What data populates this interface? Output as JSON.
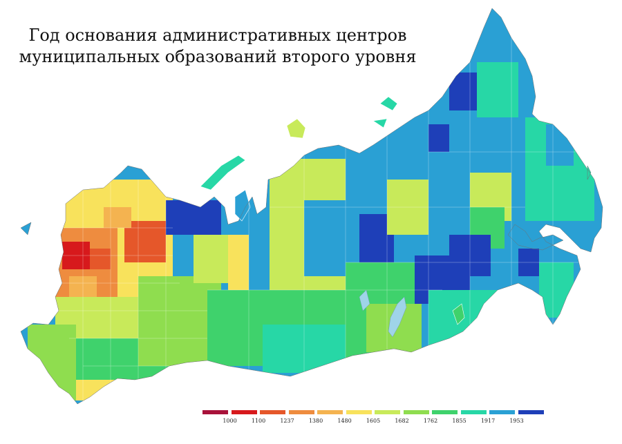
{
  "title": {
    "line1": "Год основания административных центров",
    "line2": "муниципальных образований второго уровня"
  },
  "legend": {
    "colors": [
      "#a8123a",
      "#d7191c",
      "#e5572a",
      "#ee8c3f",
      "#f4b350",
      "#f8e25c",
      "#c8ea5a",
      "#8fdd4f",
      "#3fd26c",
      "#27d7a6",
      "#2aa0d4",
      "#1e3fb8"
    ],
    "labels": [
      "1000",
      "1100",
      "1237",
      "1380",
      "1480",
      "1605",
      "1682",
      "1762",
      "1855",
      "1917",
      "1953"
    ]
  }
}
